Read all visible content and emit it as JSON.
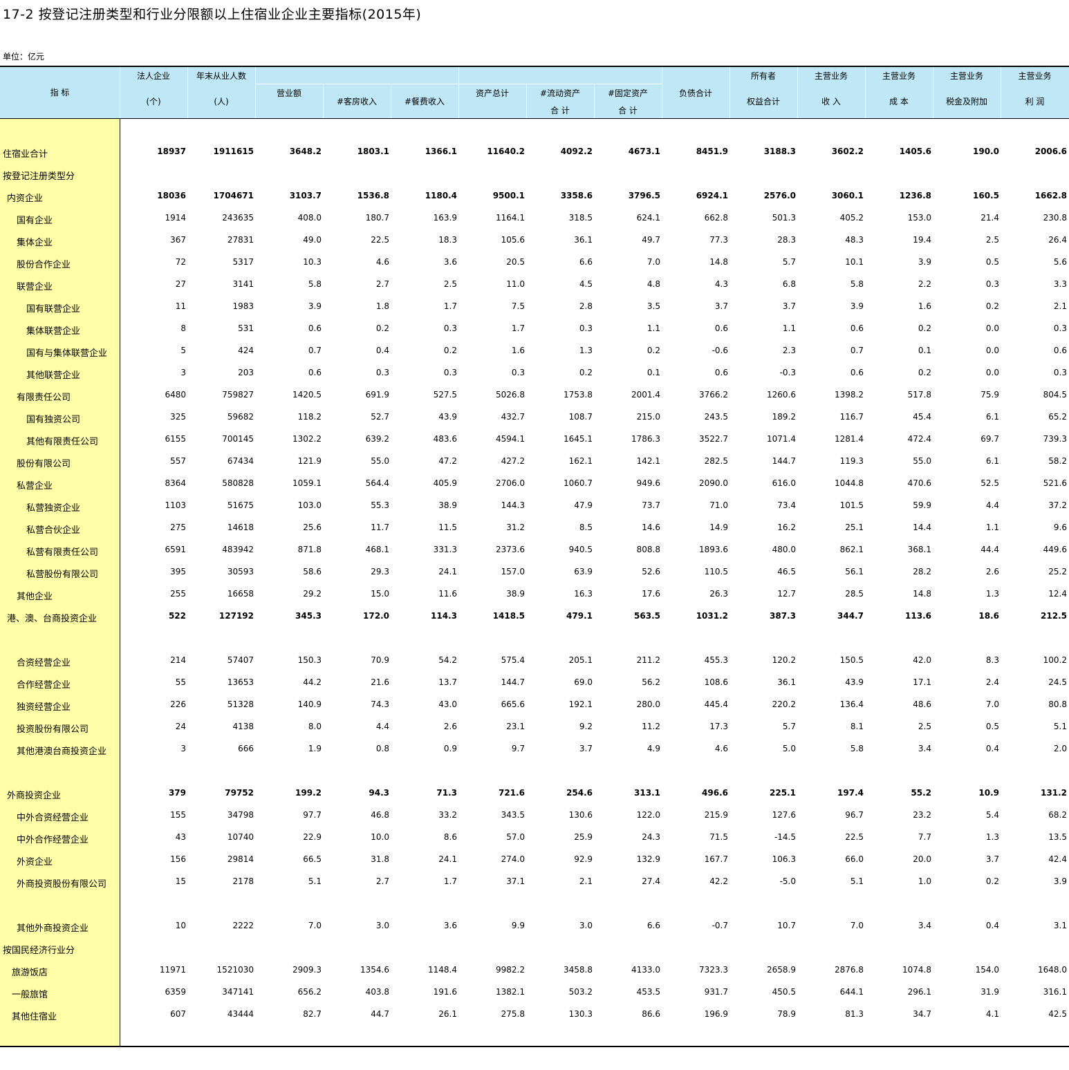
{
  "title": "17-2  按登记注册类型和行业分限额以上住宿业企业主要指标(2015年)",
  "unit": "单位：亿元",
  "headers": {
    "indicator": "指    标",
    "c1_top": "法人企业",
    "c1_bot": "(个)",
    "c2_top": "年末从业人数",
    "c2_bot": "(人)",
    "c3": "营业额",
    "c4": "#客房收入",
    "c5": "#餐费收入",
    "c6": "资产总计",
    "c7_top": "#流动资产",
    "c7_bot": "合  计",
    "c8_top": "#固定资产",
    "c8_bot": "合  计",
    "c9": "负债合计",
    "c10_top": "所有者",
    "c10_bot": "权益合计",
    "c11_top": "主营业务",
    "c11_bot": "收  入",
    "c12_top": "主营业务",
    "c12_bot": "成  本",
    "c13_top": "主营业务",
    "c13_bot": "税金及附加",
    "c14_top": "主营业务",
    "c14_bot": "利  润"
  },
  "rows": [
    {
      "label": "住宿业合计",
      "indent": 0,
      "bold": true,
      "v": [
        "18937",
        "1911615",
        "3648.2",
        "1803.1",
        "1366.1",
        "11640.2",
        "4092.2",
        "4673.1",
        "8451.9",
        "3188.3",
        "3602.2",
        "1405.6",
        "190.0",
        "2006.6"
      ]
    },
    {
      "label": "按登记注册类型分",
      "indent": 0,
      "bold": false,
      "v": []
    },
    {
      "label": "内资企业",
      "indent": 1,
      "bold": true,
      "v": [
        "18036",
        "1704671",
        "3103.7",
        "1536.8",
        "1180.4",
        "9500.1",
        "3358.6",
        "3796.5",
        "6924.1",
        "2576.0",
        "3060.1",
        "1236.8",
        "160.5",
        "1662.8"
      ]
    },
    {
      "label": "国有企业",
      "indent": 2,
      "bold": false,
      "v": [
        "1914",
        "243635",
        "408.0",
        "180.7",
        "163.9",
        "1164.1",
        "318.5",
        "624.1",
        "662.8",
        "501.3",
        "405.2",
        "153.0",
        "21.4",
        "230.8"
      ]
    },
    {
      "label": "集体企业",
      "indent": 2,
      "bold": false,
      "v": [
        "367",
        "27831",
        "49.0",
        "22.5",
        "18.3",
        "105.6",
        "36.1",
        "49.7",
        "77.3",
        "28.3",
        "48.3",
        "19.4",
        "2.5",
        "26.4"
      ]
    },
    {
      "label": "股份合作企业",
      "indent": 2,
      "bold": false,
      "v": [
        "72",
        "5317",
        "10.3",
        "4.6",
        "3.6",
        "20.5",
        "6.6",
        "7.0",
        "14.8",
        "5.7",
        "10.1",
        "3.9",
        "0.5",
        "5.6"
      ]
    },
    {
      "label": "联营企业",
      "indent": 2,
      "bold": false,
      "v": [
        "27",
        "3141",
        "5.8",
        "2.7",
        "2.5",
        "11.0",
        "4.5",
        "4.8",
        "4.3",
        "6.8",
        "5.8",
        "2.2",
        "0.3",
        "3.3"
      ]
    },
    {
      "label": "国有联营企业",
      "indent": 3,
      "bold": false,
      "v": [
        "11",
        "1983",
        "3.9",
        "1.8",
        "1.7",
        "7.5",
        "2.8",
        "3.5",
        "3.7",
        "3.7",
        "3.9",
        "1.6",
        "0.2",
        "2.1"
      ]
    },
    {
      "label": "集体联营企业",
      "indent": 3,
      "bold": false,
      "v": [
        "8",
        "531",
        "0.6",
        "0.2",
        "0.3",
        "1.7",
        "0.3",
        "1.1",
        "0.6",
        "1.1",
        "0.6",
        "0.2",
        "0.0",
        "0.3"
      ]
    },
    {
      "label": "国有与集体联营企业",
      "indent": 3,
      "bold": false,
      "v": [
        "5",
        "424",
        "0.7",
        "0.4",
        "0.2",
        "1.6",
        "1.3",
        "0.2",
        "-0.6",
        "2.3",
        "0.7",
        "0.1",
        "0.0",
        "0.6"
      ]
    },
    {
      "label": "其他联营企业",
      "indent": 3,
      "bold": false,
      "v": [
        "3",
        "203",
        "0.6",
        "0.3",
        "0.3",
        "0.3",
        "0.2",
        "0.1",
        "0.6",
        "-0.3",
        "0.6",
        "0.2",
        "0.0",
        "0.3"
      ]
    },
    {
      "label": "有限责任公司",
      "indent": 2,
      "bold": false,
      "v": [
        "6480",
        "759827",
        "1420.5",
        "691.9",
        "527.5",
        "5026.8",
        "1753.8",
        "2001.4",
        "3766.2",
        "1260.6",
        "1398.2",
        "517.8",
        "75.9",
        "804.5"
      ]
    },
    {
      "label": "国有独资公司",
      "indent": 3,
      "bold": false,
      "v": [
        "325",
        "59682",
        "118.2",
        "52.7",
        "43.9",
        "432.7",
        "108.7",
        "215.0",
        "243.5",
        "189.2",
        "116.7",
        "45.4",
        "6.1",
        "65.2"
      ]
    },
    {
      "label": "其他有限责任公司",
      "indent": 3,
      "bold": false,
      "v": [
        "6155",
        "700145",
        "1302.2",
        "639.2",
        "483.6",
        "4594.1",
        "1645.1",
        "1786.3",
        "3522.7",
        "1071.4",
        "1281.4",
        "472.4",
        "69.7",
        "739.3"
      ]
    },
    {
      "label": "股份有限公司",
      "indent": 2,
      "bold": false,
      "v": [
        "557",
        "67434",
        "121.9",
        "55.0",
        "47.2",
        "427.2",
        "162.1",
        "142.1",
        "282.5",
        "144.7",
        "119.3",
        "55.0",
        "6.1",
        "58.2"
      ]
    },
    {
      "label": "私营企业",
      "indent": 2,
      "bold": false,
      "v": [
        "8364",
        "580828",
        "1059.1",
        "564.4",
        "405.9",
        "2706.0",
        "1060.7",
        "949.6",
        "2090.0",
        "616.0",
        "1044.8",
        "470.6",
        "52.5",
        "521.6"
      ]
    },
    {
      "label": "私营独资企业",
      "indent": 3,
      "bold": false,
      "v": [
        "1103",
        "51675",
        "103.0",
        "55.3",
        "38.9",
        "144.3",
        "47.9",
        "73.7",
        "71.0",
        "73.4",
        "101.5",
        "59.9",
        "4.4",
        "37.2"
      ]
    },
    {
      "label": "私营合伙企业",
      "indent": 3,
      "bold": false,
      "v": [
        "275",
        "14618",
        "25.6",
        "11.7",
        "11.5",
        "31.2",
        "8.5",
        "14.6",
        "14.9",
        "16.2",
        "25.1",
        "14.4",
        "1.1",
        "9.6"
      ]
    },
    {
      "label": "私营有限责任公司",
      "indent": 3,
      "bold": false,
      "v": [
        "6591",
        "483942",
        "871.8",
        "468.1",
        "331.3",
        "2373.6",
        "940.5",
        "808.8",
        "1893.6",
        "480.0",
        "862.1",
        "368.1",
        "44.4",
        "449.6"
      ]
    },
    {
      "label": "私营股份有限公司",
      "indent": 3,
      "bold": false,
      "v": [
        "395",
        "30593",
        "58.6",
        "29.3",
        "24.1",
        "157.0",
        "63.9",
        "52.6",
        "110.5",
        "46.5",
        "56.1",
        "28.2",
        "2.6",
        "25.2"
      ]
    },
    {
      "label": "其他企业",
      "indent": 2,
      "bold": false,
      "v": [
        "255",
        "16658",
        "29.2",
        "15.0",
        "11.6",
        "38.9",
        "16.3",
        "17.6",
        "26.3",
        "12.7",
        "28.5",
        "14.8",
        "1.3",
        "12.4"
      ]
    },
    {
      "label": "港、澳、台商投资企业",
      "indent": 1,
      "bold": true,
      "v": [
        "522",
        "127192",
        "345.3",
        "172.0",
        "114.3",
        "1418.5",
        "479.1",
        "563.5",
        "1031.2",
        "387.3",
        "344.7",
        "113.6",
        "18.6",
        "212.5"
      ]
    },
    {
      "label": "",
      "indent": 0,
      "bold": false,
      "v": []
    },
    {
      "label": "合资经营企业",
      "indent": 2,
      "bold": false,
      "v": [
        "214",
        "57407",
        "150.3",
        "70.9",
        "54.2",
        "575.4",
        "205.1",
        "211.2",
        "455.3",
        "120.2",
        "150.5",
        "42.0",
        "8.3",
        "100.2"
      ]
    },
    {
      "label": "合作经营企业",
      "indent": 2,
      "bold": false,
      "v": [
        "55",
        "13653",
        "44.2",
        "21.6",
        "13.7",
        "144.7",
        "69.0",
        "56.2",
        "108.6",
        "36.1",
        "43.9",
        "17.1",
        "2.4",
        "24.5"
      ]
    },
    {
      "label": "独资经营企业",
      "indent": 2,
      "bold": false,
      "v": [
        "226",
        "51328",
        "140.9",
        "74.3",
        "43.0",
        "665.6",
        "192.1",
        "280.0",
        "445.4",
        "220.2",
        "136.4",
        "48.6",
        "7.0",
        "80.8"
      ]
    },
    {
      "label": "投资股份有限公司",
      "indent": 2,
      "bold": false,
      "v": [
        "24",
        "4138",
        "8.0",
        "4.4",
        "2.6",
        "23.1",
        "9.2",
        "11.2",
        "17.3",
        "5.7",
        "8.1",
        "2.5",
        "0.5",
        "5.1"
      ]
    },
    {
      "label": "其他港澳台商投资企业",
      "indent": 2,
      "bold": false,
      "v": [
        "3",
        "666",
        "1.9",
        "0.8",
        "0.9",
        "9.7",
        "3.7",
        "4.9",
        "4.6",
        "5.0",
        "5.8",
        "3.4",
        "0.4",
        "2.0"
      ]
    },
    {
      "label": "",
      "indent": 0,
      "bold": false,
      "v": []
    },
    {
      "label": "外商投资企业",
      "indent": 1,
      "bold": true,
      "v": [
        "379",
        "79752",
        "199.2",
        "94.3",
        "71.3",
        "721.6",
        "254.6",
        "313.1",
        "496.6",
        "225.1",
        "197.4",
        "55.2",
        "10.9",
        "131.2"
      ]
    },
    {
      "label": "中外合资经营企业",
      "indent": 2,
      "bold": false,
      "v": [
        "155",
        "34798",
        "97.7",
        "46.8",
        "33.2",
        "343.5",
        "130.6",
        "122.0",
        "215.9",
        "127.6",
        "96.7",
        "23.2",
        "5.4",
        "68.2"
      ]
    },
    {
      "label": "中外合作经营企业",
      "indent": 2,
      "bold": false,
      "v": [
        "43",
        "10740",
        "22.9",
        "10.0",
        "8.6",
        "57.0",
        "25.9",
        "24.3",
        "71.5",
        "-14.5",
        "22.5",
        "7.7",
        "1.3",
        "13.5"
      ]
    },
    {
      "label": "外资企业",
      "indent": 2,
      "bold": false,
      "v": [
        "156",
        "29814",
        "66.5",
        "31.8",
        "24.1",
        "274.0",
        "92.9",
        "132.9",
        "167.7",
        "106.3",
        "66.0",
        "20.0",
        "3.7",
        "42.4"
      ]
    },
    {
      "label": "外商投资股份有限公司",
      "indent": 2,
      "bold": false,
      "v": [
        "15",
        "2178",
        "5.1",
        "2.7",
        "1.7",
        "37.1",
        "2.1",
        "27.4",
        "42.2",
        "-5.0",
        "5.1",
        "1.0",
        "0.2",
        "3.9"
      ]
    },
    {
      "label": "",
      "indent": 0,
      "bold": false,
      "v": []
    },
    {
      "label": "其他外商投资企业",
      "indent": 2,
      "bold": false,
      "v": [
        "10",
        "2222",
        "7.0",
        "3.0",
        "3.6",
        "9.9",
        "3.0",
        "6.6",
        "-0.7",
        "10.7",
        "7.0",
        "3.4",
        "0.4",
        "3.1"
      ]
    },
    {
      "label": "按国民经济行业分",
      "indent": 0,
      "bold": false,
      "v": []
    },
    {
      "label": "旅游饭店",
      "indent": 1.5,
      "bold": false,
      "v": [
        "11971",
        "1521030",
        "2909.3",
        "1354.6",
        "1148.4",
        "9982.2",
        "3458.8",
        "4133.0",
        "7323.3",
        "2658.9",
        "2876.8",
        "1074.8",
        "154.0",
        "1648.0"
      ]
    },
    {
      "label": "一般旅馆",
      "indent": 1.5,
      "bold": false,
      "v": [
        "6359",
        "347141",
        "656.2",
        "403.8",
        "191.6",
        "1382.1",
        "503.2",
        "453.5",
        "931.7",
        "450.5",
        "644.1",
        "296.1",
        "31.9",
        "316.1"
      ]
    },
    {
      "label": "其他住宿业",
      "indent": 1.5,
      "bold": false,
      "v": [
        "607",
        "43444",
        "82.7",
        "44.7",
        "26.1",
        "275.8",
        "130.3",
        "86.6",
        "196.9",
        "78.9",
        "81.3",
        "34.7",
        "4.1",
        "42.5"
      ]
    }
  ]
}
